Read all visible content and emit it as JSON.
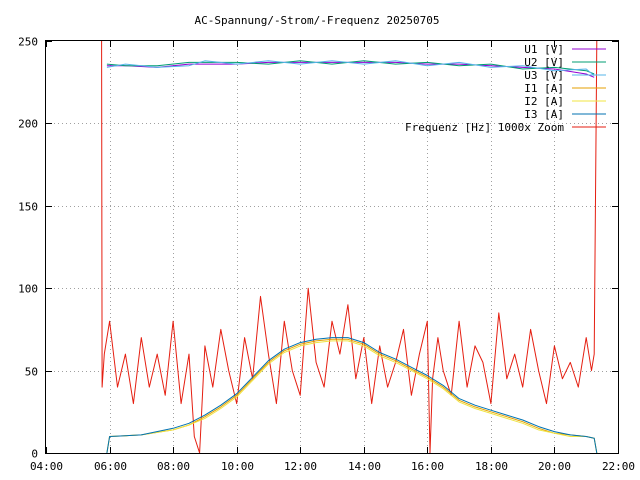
{
  "chart_data": {
    "type": "line",
    "title": "AC-Spannung/-Strom/-Frequenz 20250705",
    "xlabel": "",
    "ylabel": "",
    "x_ticks": [
      "04:00",
      "06:00",
      "08:00",
      "10:00",
      "12:00",
      "14:00",
      "16:00",
      "18:00",
      "20:00",
      "22:00"
    ],
    "y_ticks": [
      "0",
      "50",
      "100",
      "150",
      "200",
      "250"
    ],
    "xlim": [
      "04:00",
      "22:00"
    ],
    "ylim": [
      0,
      250
    ],
    "grid": true,
    "legend_position": "top-right",
    "colors": {
      "U1": "#9400d3",
      "U2": "#009e73",
      "U3": "#56b4e9",
      "I1": "#e69f00",
      "I2": "#f0e442",
      "I3": "#0072b2",
      "F": "#e51e10"
    },
    "series": [
      {
        "key": "U1",
        "name": "U1 [V]",
        "x": [
          "05:55",
          "06:30",
          "07:30",
          "08:30",
          "09:00",
          "10:00",
          "11:00",
          "12:00",
          "13:00",
          "14:00",
          "15:00",
          "16:00",
          "17:00",
          "18:00",
          "19:00",
          "20:00",
          "21:00",
          "21:15"
        ],
        "values": [
          235,
          235,
          234,
          236,
          236,
          236,
          237,
          237,
          237,
          237,
          237,
          236,
          236,
          235,
          234,
          233,
          230,
          228
        ]
      },
      {
        "key": "U2",
        "name": "U2 [V]",
        "x": [
          "05:55",
          "06:30",
          "07:30",
          "08:30",
          "09:00",
          "10:00",
          "11:00",
          "12:00",
          "13:00",
          "14:00",
          "15:00",
          "16:00",
          "17:00",
          "18:00",
          "19:00",
          "20:00",
          "21:00",
          "21:15"
        ],
        "values": [
          236,
          235,
          235,
          237,
          237,
          237,
          236,
          238,
          236,
          238,
          236,
          237,
          235,
          236,
          233,
          234,
          232,
          230
        ]
      },
      {
        "key": "U3",
        "name": "U3 [V]",
        "x": [
          "05:55",
          "06:30",
          "07:30",
          "08:30",
          "09:00",
          "10:00",
          "11:00",
          "12:00",
          "13:00",
          "14:00",
          "15:00",
          "16:00",
          "17:00",
          "18:00",
          "19:00",
          "20:00",
          "21:00",
          "21:15"
        ],
        "values": [
          234,
          236,
          234,
          235,
          238,
          236,
          238,
          236,
          238,
          236,
          238,
          235,
          237,
          234,
          235,
          232,
          233,
          229
        ]
      },
      {
        "key": "I1",
        "name": "I1 [A]",
        "x": [
          "05:55",
          "06:00",
          "07:00",
          "08:00",
          "08:30",
          "09:00",
          "09:30",
          "10:00",
          "10:30",
          "11:00",
          "11:30",
          "12:00",
          "12:30",
          "13:00",
          "13:30",
          "14:00",
          "14:30",
          "15:00",
          "15:30",
          "16:00",
          "16:30",
          "17:00",
          "17:30",
          "18:00",
          "18:30",
          "19:00",
          "19:30",
          "20:00",
          "20:30",
          "21:00",
          "21:15",
          "21:20"
        ],
        "values": [
          0,
          10,
          11,
          14,
          17,
          22,
          28,
          35,
          45,
          55,
          62,
          66,
          68,
          69,
          69,
          66,
          60,
          56,
          51,
          46,
          40,
          32,
          28,
          25,
          22,
          19,
          15,
          12,
          11,
          10,
          9,
          0
        ]
      },
      {
        "key": "I2",
        "name": "I2 [A]",
        "x": [
          "05:55",
          "06:00",
          "07:00",
          "08:00",
          "08:30",
          "09:00",
          "09:30",
          "10:00",
          "10:30",
          "11:00",
          "11:30",
          "12:00",
          "12:30",
          "13:00",
          "13:30",
          "14:00",
          "14:30",
          "15:00",
          "15:30",
          "16:00",
          "16:30",
          "17:00",
          "17:30",
          "18:00",
          "18:30",
          "19:00",
          "19:30",
          "20:00",
          "20:30",
          "21:00",
          "21:15",
          "21:20"
        ],
        "values": [
          0,
          10,
          11,
          14,
          17,
          21,
          27,
          34,
          44,
          54,
          61,
          65,
          67,
          68,
          68,
          65,
          59,
          55,
          50,
          45,
          39,
          31,
          27,
          24,
          21,
          18,
          14,
          12,
          10,
          10,
          9,
          0
        ]
      },
      {
        "key": "I3",
        "name": "I3 [A]",
        "x": [
          "05:55",
          "06:00",
          "07:00",
          "08:00",
          "08:30",
          "09:00",
          "09:30",
          "10:00",
          "10:30",
          "11:00",
          "11:30",
          "12:00",
          "12:30",
          "13:00",
          "13:30",
          "14:00",
          "14:30",
          "15:00",
          "15:30",
          "16:00",
          "16:30",
          "17:00",
          "17:30",
          "18:00",
          "18:30",
          "19:00",
          "19:30",
          "20:00",
          "20:30",
          "21:00",
          "21:15",
          "21:20"
        ],
        "values": [
          0,
          10,
          11,
          15,
          18,
          23,
          29,
          36,
          46,
          56,
          63,
          67,
          69,
          70,
          70,
          67,
          61,
          57,
          52,
          47,
          41,
          33,
          29,
          26,
          23,
          20,
          16,
          13,
          11,
          10,
          9,
          0
        ]
      },
      {
        "key": "F",
        "name": "Frequenz [Hz] 1000x Zoom",
        "x": [
          "05:45",
          "05:46",
          "05:50",
          "06:00",
          "06:15",
          "06:30",
          "06:45",
          "07:00",
          "07:15",
          "07:30",
          "07:45",
          "08:00",
          "08:15",
          "08:30",
          "08:40",
          "08:50",
          "09:00",
          "09:15",
          "09:30",
          "09:45",
          "10:00",
          "10:15",
          "10:30",
          "10:45",
          "11:00",
          "11:15",
          "11:30",
          "11:45",
          "12:00",
          "12:15",
          "12:30",
          "12:45",
          "13:00",
          "13:15",
          "13:30",
          "13:45",
          "14:00",
          "14:15",
          "14:30",
          "14:45",
          "15:00",
          "15:15",
          "15:30",
          "15:45",
          "16:00",
          "16:05",
          "16:10",
          "16:20",
          "16:30",
          "16:45",
          "17:00",
          "17:15",
          "17:30",
          "17:45",
          "18:00",
          "18:15",
          "18:30",
          "18:45",
          "19:00",
          "19:15",
          "19:30",
          "19:45",
          "20:00",
          "20:15",
          "20:30",
          "20:45",
          "21:00",
          "21:10",
          "21:15",
          "21:20"
        ],
        "values": [
          250,
          40,
          60,
          80,
          40,
          60,
          30,
          70,
          40,
          60,
          35,
          80,
          30,
          60,
          10,
          0,
          65,
          40,
          75,
          50,
          30,
          70,
          45,
          95,
          60,
          30,
          80,
          50,
          35,
          100,
          55,
          40,
          80,
          60,
          90,
          45,
          70,
          30,
          65,
          40,
          55,
          75,
          35,
          60,
          80,
          0,
          45,
          70,
          50,
          35,
          80,
          40,
          65,
          55,
          30,
          85,
          45,
          60,
          40,
          75,
          50,
          30,
          65,
          45,
          55,
          40,
          70,
          50,
          60,
          250
        ]
      }
    ]
  }
}
